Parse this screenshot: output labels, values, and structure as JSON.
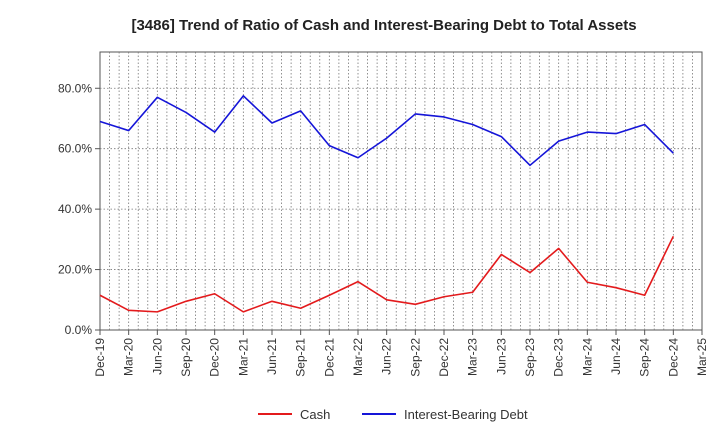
{
  "chart_data": {
    "type": "line",
    "title": "[3486]  Trend of Ratio of Cash and Interest-Bearing Debt to Total Assets",
    "xlabel": "",
    "ylabel": "",
    "categories": [
      "Dec-19",
      "Jan-20",
      "Feb-20",
      "Mar-20",
      "Apr-20",
      "May-20",
      "Jun-20",
      "Jul-20",
      "Aug-20",
      "Sep-20",
      "Oct-20",
      "Nov-20",
      "Dec-20",
      "Jan-21",
      "Feb-21",
      "Mar-21",
      "Apr-21",
      "May-21",
      "Jun-21",
      "Jul-21",
      "Aug-21",
      "Sep-21",
      "Oct-21",
      "Nov-21",
      "Dec-21",
      "Jan-22",
      "Feb-22",
      "Mar-22",
      "Apr-22",
      "May-22",
      "Jun-22",
      "Jul-22",
      "Aug-22",
      "Sep-22",
      "Oct-22",
      "Nov-22",
      "Dec-22",
      "Jan-23",
      "Feb-23",
      "Mar-23",
      "Apr-23",
      "May-23",
      "Jun-23",
      "Jul-23",
      "Aug-23",
      "Sep-23",
      "Oct-23",
      "Nov-23",
      "Dec-23",
      "Jan-24",
      "Feb-24",
      "Mar-24",
      "Apr-24",
      "May-24",
      "Jun-24",
      "Jul-24",
      "Aug-24",
      "Sep-24",
      "Oct-24",
      "Nov-24",
      "Dec-24",
      "Jan-25",
      "Feb-25",
      "Mar-25"
    ],
    "x_tick_labels": [
      "Dec-19",
      "Mar-20",
      "Jun-20",
      "Sep-20",
      "Dec-20",
      "Mar-21",
      "Jun-21",
      "Sep-21",
      "Dec-21",
      "Mar-22",
      "Jun-22",
      "Sep-22",
      "Dec-22",
      "Mar-23",
      "Jun-23",
      "Sep-23",
      "Dec-23",
      "Mar-24",
      "Jun-24",
      "Sep-24",
      "Dec-24",
      "Mar-25"
    ],
    "y_ticks": [
      0,
      20,
      40,
      60,
      80
    ],
    "y_tick_labels": [
      "0.0%",
      "20.0%",
      "40.0%",
      "60.0%",
      "80.0%"
    ],
    "ylim": [
      0,
      92
    ],
    "grid": true,
    "legend_position": "bottom",
    "series": [
      {
        "name": "Cash",
        "color": "#e31a1c",
        "points": [
          [
            "Dec-19",
            11.5
          ],
          [
            "Mar-20",
            6.5
          ],
          [
            "Jun-20",
            6.0
          ],
          [
            "Sep-20",
            9.5
          ],
          [
            "Dec-20",
            12.0
          ],
          [
            "Mar-21",
            6.0
          ],
          [
            "Jun-21",
            9.5
          ],
          [
            "Sep-21",
            7.2
          ],
          [
            "Dec-21",
            11.5
          ],
          [
            "Mar-22",
            16.0
          ],
          [
            "Jun-22",
            10.0
          ],
          [
            "Sep-22",
            8.5
          ],
          [
            "Dec-22",
            11.0
          ],
          [
            "Mar-23",
            12.5
          ],
          [
            "Jun-23",
            25.0
          ],
          [
            "Sep-23",
            19.0
          ],
          [
            "Dec-23",
            27.0
          ],
          [
            "Mar-24",
            15.8
          ],
          [
            "Jun-24",
            14.0
          ],
          [
            "Sep-24",
            11.5
          ],
          [
            "Dec-24",
            31.0
          ]
        ]
      },
      {
        "name": "Interest-Bearing Debt",
        "color": "#1515d8",
        "points": [
          [
            "Dec-19",
            69.0
          ],
          [
            "Mar-20",
            66.0
          ],
          [
            "Jun-20",
            77.0
          ],
          [
            "Sep-20",
            72.0
          ],
          [
            "Dec-20",
            65.5
          ],
          [
            "Mar-21",
            77.5
          ],
          [
            "Jun-21",
            68.5
          ],
          [
            "Sep-21",
            72.5
          ],
          [
            "Dec-21",
            61.0
          ],
          [
            "Mar-22",
            57.0
          ],
          [
            "Jun-22",
            63.5
          ],
          [
            "Sep-22",
            71.5
          ],
          [
            "Dec-22",
            70.5
          ],
          [
            "Mar-23",
            68.0
          ],
          [
            "Jun-23",
            64.0
          ],
          [
            "Sep-23",
            54.5
          ],
          [
            "Dec-23",
            62.5
          ],
          [
            "Mar-24",
            65.5
          ],
          [
            "Jun-24",
            65.0
          ],
          [
            "Sep-24",
            68.0
          ],
          [
            "Dec-24",
            58.5
          ]
        ]
      }
    ]
  }
}
